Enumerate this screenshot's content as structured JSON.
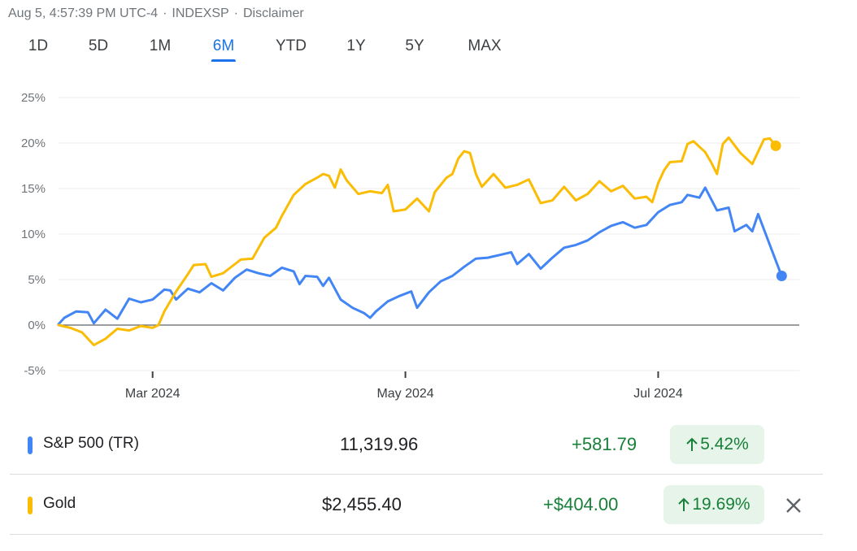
{
  "header": {
    "timestamp": "Aug 5, 4:57:39 PM UTC-4",
    "source": "INDEXSP",
    "disclaimer": "Disclaimer"
  },
  "ranges": [
    {
      "label": "1D",
      "active": false
    },
    {
      "label": "5D",
      "active": false
    },
    {
      "label": "1M",
      "active": false
    },
    {
      "label": "6M",
      "active": true
    },
    {
      "label": "YTD",
      "active": false
    },
    {
      "label": "1Y",
      "active": false
    },
    {
      "label": "5Y",
      "active": false
    },
    {
      "label": "MAX",
      "active": false
    }
  ],
  "chart_data": {
    "type": "line",
    "title": "",
    "xlabel": "",
    "ylabel": "",
    "x_tick_labels": [
      "Mar 2024",
      "May 2024",
      "Jul 2024"
    ],
    "y_tick_labels": [
      "25%",
      "20%",
      "15%",
      "10%",
      "5%",
      "0%",
      "-5%"
    ],
    "ylim": [
      -5,
      25
    ],
    "grid": true,
    "x_unit": "trading day index (0 = start of Feb 2024, 0–126 over 6M)",
    "series": [
      {
        "name": "S&P 500 (TR)",
        "color": "#4285f4",
        "points": [
          [
            0,
            0.1
          ],
          [
            1,
            0.8
          ],
          [
            3,
            1.5
          ],
          [
            5,
            1.4
          ],
          [
            6,
            0.2
          ],
          [
            8,
            1.7
          ],
          [
            10,
            0.7
          ],
          [
            12,
            2.9
          ],
          [
            14,
            2.5
          ],
          [
            16,
            2.8
          ],
          [
            18,
            3.9
          ],
          [
            19,
            3.8
          ],
          [
            20,
            2.8
          ],
          [
            22,
            4.0
          ],
          [
            24,
            3.6
          ],
          [
            26,
            4.6
          ],
          [
            28,
            3.8
          ],
          [
            30,
            5.2
          ],
          [
            32,
            6.1
          ],
          [
            34,
            5.7
          ],
          [
            36,
            5.4
          ],
          [
            38,
            6.3
          ],
          [
            40,
            5.9
          ],
          [
            41,
            4.5
          ],
          [
            42,
            5.4
          ],
          [
            44,
            5.3
          ],
          [
            45,
            4.3
          ],
          [
            46,
            5.2
          ],
          [
            48,
            2.8
          ],
          [
            50,
            1.9
          ],
          [
            52,
            1.3
          ],
          [
            53,
            0.8
          ],
          [
            54,
            1.5
          ],
          [
            56,
            2.6
          ],
          [
            58,
            3.2
          ],
          [
            60,
            3.7
          ],
          [
            61,
            1.9
          ],
          [
            63,
            3.6
          ],
          [
            65,
            4.8
          ],
          [
            67,
            5.4
          ],
          [
            69,
            6.4
          ],
          [
            71,
            7.3
          ],
          [
            73,
            7.4
          ],
          [
            75,
            7.7
          ],
          [
            77,
            8.0
          ],
          [
            78,
            6.7
          ],
          [
            80,
            7.8
          ],
          [
            82,
            6.2
          ],
          [
            84,
            7.4
          ],
          [
            86,
            8.5
          ],
          [
            88,
            8.8
          ],
          [
            90,
            9.3
          ],
          [
            92,
            10.2
          ],
          [
            94,
            10.9
          ],
          [
            96,
            11.3
          ],
          [
            98,
            10.7
          ],
          [
            100,
            11.0
          ],
          [
            102,
            12.4
          ],
          [
            104,
            13.2
          ],
          [
            106,
            13.5
          ],
          [
            107,
            14.3
          ],
          [
            109,
            14.0
          ],
          [
            110,
            15.1
          ],
          [
            112,
            12.6
          ],
          [
            114,
            12.9
          ],
          [
            115,
            10.3
          ],
          [
            117,
            11.0
          ],
          [
            118,
            10.3
          ],
          [
            119,
            12.2
          ],
          [
            121,
            8.8
          ],
          [
            123,
            5.4
          ]
        ]
      },
      {
        "name": "Gold",
        "color": "#fbbc04",
        "points": [
          [
            0,
            0.0
          ],
          [
            2,
            -0.3
          ],
          [
            4,
            -0.8
          ],
          [
            6,
            -2.2
          ],
          [
            8,
            -1.5
          ],
          [
            10,
            -0.4
          ],
          [
            12,
            -0.6
          ],
          [
            14,
            -0.1
          ],
          [
            16,
            -0.3
          ],
          [
            17,
            0.0
          ],
          [
            18,
            1.5
          ],
          [
            20,
            3.7
          ],
          [
            22,
            5.6
          ],
          [
            23,
            6.6
          ],
          [
            25,
            6.7
          ],
          [
            26,
            5.3
          ],
          [
            28,
            5.7
          ],
          [
            30,
            6.7
          ],
          [
            31,
            7.2
          ],
          [
            33,
            7.3
          ],
          [
            35,
            9.6
          ],
          [
            37,
            10.7
          ],
          [
            38,
            12.0
          ],
          [
            40,
            14.3
          ],
          [
            42,
            15.5
          ],
          [
            44,
            16.2
          ],
          [
            45,
            16.6
          ],
          [
            46,
            16.4
          ],
          [
            47,
            15.1
          ],
          [
            48,
            17.1
          ],
          [
            49,
            15.9
          ],
          [
            51,
            14.4
          ],
          [
            53,
            14.7
          ],
          [
            55,
            14.5
          ],
          [
            56,
            15.4
          ],
          [
            57,
            12.5
          ],
          [
            59,
            12.7
          ],
          [
            61,
            13.9
          ],
          [
            63,
            12.5
          ],
          [
            64,
            14.6
          ],
          [
            66,
            16.2
          ],
          [
            67,
            16.6
          ],
          [
            68,
            18.3
          ],
          [
            69,
            19.1
          ],
          [
            70,
            18.9
          ],
          [
            71,
            16.6
          ],
          [
            72,
            15.2
          ],
          [
            74,
            16.6
          ],
          [
            76,
            15.1
          ],
          [
            78,
            15.4
          ],
          [
            80,
            16.0
          ],
          [
            82,
            13.4
          ],
          [
            84,
            13.7
          ],
          [
            86,
            15.2
          ],
          [
            88,
            13.7
          ],
          [
            90,
            14.4
          ],
          [
            92,
            15.8
          ],
          [
            94,
            14.7
          ],
          [
            96,
            15.3
          ],
          [
            98,
            13.9
          ],
          [
            100,
            14.1
          ],
          [
            101,
            13.5
          ],
          [
            102,
            15.6
          ],
          [
            103,
            17.0
          ],
          [
            104,
            17.9
          ],
          [
            106,
            18.0
          ],
          [
            107,
            19.9
          ],
          [
            108,
            20.2
          ],
          [
            110,
            19.0
          ],
          [
            111,
            17.9
          ],
          [
            112,
            16.6
          ],
          [
            113,
            19.9
          ],
          [
            114,
            20.6
          ],
          [
            116,
            18.9
          ],
          [
            118,
            17.7
          ],
          [
            120,
            20.4
          ],
          [
            121,
            20.5
          ],
          [
            122,
            19.7
          ]
        ]
      }
    ]
  },
  "rows": [
    {
      "name": "S&P 500 (TR)",
      "color": "#4285f4",
      "price": "11,319.96",
      "change": "+581.79",
      "pct": "5.42%"
    },
    {
      "name": "Gold",
      "color": "#fbbc04",
      "price": "$2,455.40",
      "change": "+$404.00",
      "pct": "19.69%"
    }
  ],
  "icons": {
    "arrow": "arrow-up-icon",
    "close": "close-icon"
  }
}
